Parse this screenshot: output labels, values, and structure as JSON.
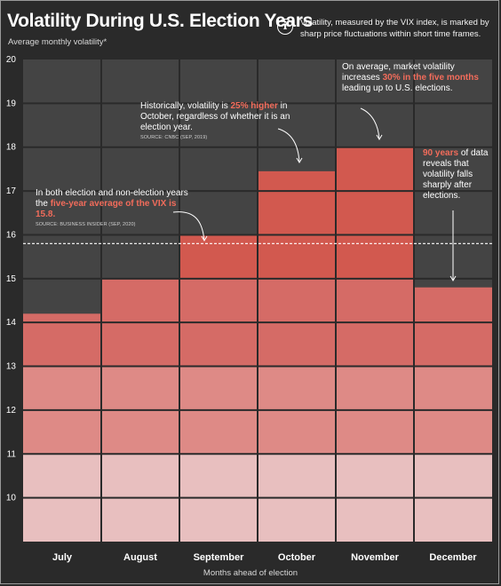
{
  "chart_data": {
    "type": "bar",
    "title": "Volatility During U.S. Election Years",
    "subtitle": "Average monthly volatility*",
    "info_note": "Volatility, measured by the VIX index, is marked by sharp price fluctuations within short time frames.",
    "categories": [
      "July",
      "August",
      "September",
      "October",
      "November",
      "December"
    ],
    "values": [
      14.2,
      15.0,
      16.0,
      17.45,
      18.0,
      14.8
    ],
    "xlabel": "Months ahead of election",
    "ylabel": "",
    "ylim": [
      9,
      20
    ],
    "yticks": [
      10,
      11,
      12,
      13,
      14,
      15,
      16,
      17,
      18,
      19,
      20
    ],
    "grid": true,
    "reference_line": {
      "value": 15.8,
      "style": "dashed"
    },
    "colors": {
      "background": "#2a2a2a",
      "plot_background": "#444444",
      "grid": "#2a2a2a",
      "bar_bands": [
        "#e8bfbf",
        "#de8a86",
        "#d56b66",
        "#d2594f"
      ],
      "highlight": "#f26c5b",
      "reference_line": "#ffffff"
    },
    "annotations": [
      {
        "parts": [
          {
            "text": "In both election and non-election years the ",
            "hl": false
          },
          {
            "text": "five-year average of the VIX is 15.8.",
            "hl": true
          }
        ],
        "source": "SOURCE: BUSINESS INSIDER (SEP, 2020)"
      },
      {
        "parts": [
          {
            "text": "Historically, volatility is ",
            "hl": false
          },
          {
            "text": "25% higher",
            "hl": true
          },
          {
            "text": " in October, regardless of whether it is an election year.",
            "hl": false
          }
        ],
        "source": "SOURCE: CNBC (SEP, 2019)"
      },
      {
        "parts": [
          {
            "text": "On average, market volatility increases ",
            "hl": false
          },
          {
            "text": "30% in the five months",
            "hl": true
          },
          {
            "text": " leading up to U.S. elections.",
            "hl": false
          }
        ],
        "source": ""
      },
      {
        "parts": [
          {
            "text": "90 years",
            "hl": true
          },
          {
            "text": " of data reveals that volatility falls sharply after elections.",
            "hl": false
          }
        ],
        "source": ""
      }
    ]
  }
}
